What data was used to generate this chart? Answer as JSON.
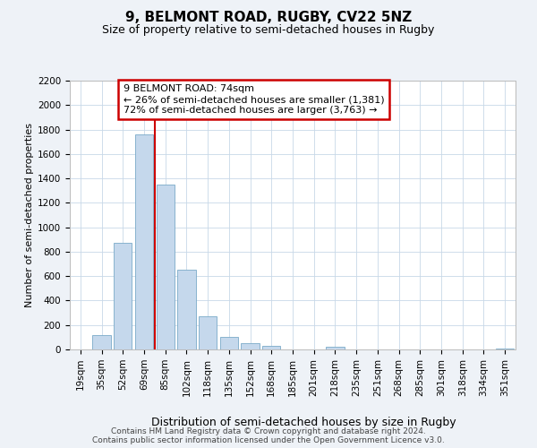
{
  "title": "9, BELMONT ROAD, RUGBY, CV22 5NZ",
  "subtitle": "Size of property relative to semi-detached houses in Rugby",
  "xlabel": "Distribution of semi-detached houses by size in Rugby",
  "ylabel": "Number of semi-detached properties",
  "bar_labels": [
    "19sqm",
    "35sqm",
    "52sqm",
    "69sqm",
    "85sqm",
    "102sqm",
    "118sqm",
    "135sqm",
    "152sqm",
    "168sqm",
    "185sqm",
    "201sqm",
    "218sqm",
    "235sqm",
    "251sqm",
    "268sqm",
    "285sqm",
    "301sqm",
    "318sqm",
    "334sqm",
    "351sqm"
  ],
  "bar_values": [
    0,
    120,
    870,
    1760,
    1350,
    650,
    270,
    100,
    50,
    30,
    0,
    0,
    20,
    0,
    0,
    0,
    0,
    0,
    0,
    0,
    10
  ],
  "bar_color": "#c5d8ec",
  "bar_edge_color": "#7aaac8",
  "vline_color": "#cc0000",
  "vline_pos": 3.5,
  "ylim": [
    0,
    2200
  ],
  "yticks": [
    0,
    200,
    400,
    600,
    800,
    1000,
    1200,
    1400,
    1600,
    1800,
    2000,
    2200
  ],
  "annotation_title": "9 BELMONT ROAD: 74sqm",
  "annotation_line1": "← 26% of semi-detached houses are smaller (1,381)",
  "annotation_line2": "72% of semi-detached houses are larger (3,763) →",
  "footer_line1": "Contains HM Land Registry data © Crown copyright and database right 2024.",
  "footer_line2": "Contains public sector information licensed under the Open Government Licence v3.0.",
  "bg_color": "#eef2f7",
  "plot_bg_color": "#ffffff",
  "grid_color": "#c8d8e8",
  "title_fontsize": 11,
  "subtitle_fontsize": 9,
  "xlabel_fontsize": 9,
  "ylabel_fontsize": 8,
  "tick_fontsize": 7.5,
  "footer_fontsize": 6.5,
  "annot_fontsize": 8
}
